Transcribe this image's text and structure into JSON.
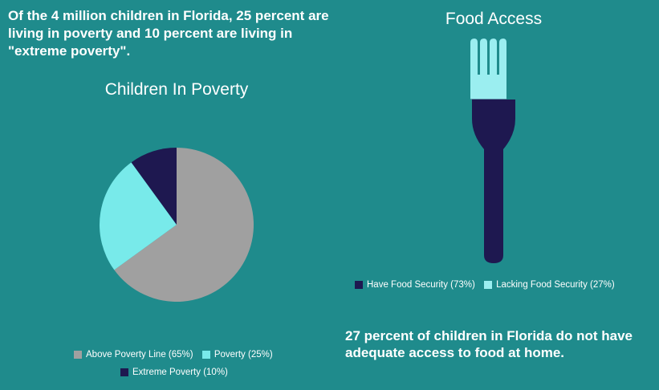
{
  "headline": "Of the 4 million children in Florida, 25 percent are living in poverty and 10 percent are living in \"extreme poverty\".",
  "colors": {
    "background": "#1f8b8c",
    "above_poverty": "#a0a0a0",
    "poverty": "#78eaea",
    "extreme_poverty": "#1e1850",
    "have_food_security": "#1e1850",
    "lacking_food_security": "#9beef0"
  },
  "chart_data": [
    {
      "type": "pie",
      "title": "Children In Poverty",
      "categories": [
        "Above Poverty Line (65%)",
        "Poverty (25%)",
        "Extreme Poverty (10%)"
      ],
      "values": [
        65,
        25,
        10
      ],
      "legend": "bottom"
    },
    {
      "type": "area",
      "title": "Food Access",
      "categories": [
        "Have Food Security (73%)",
        "Lacking Food Security (27%)"
      ],
      "values": [
        73,
        27
      ],
      "legend": "bottom"
    }
  ],
  "footnote": "27 percent of children in Florida do not have adequate access to food at home."
}
